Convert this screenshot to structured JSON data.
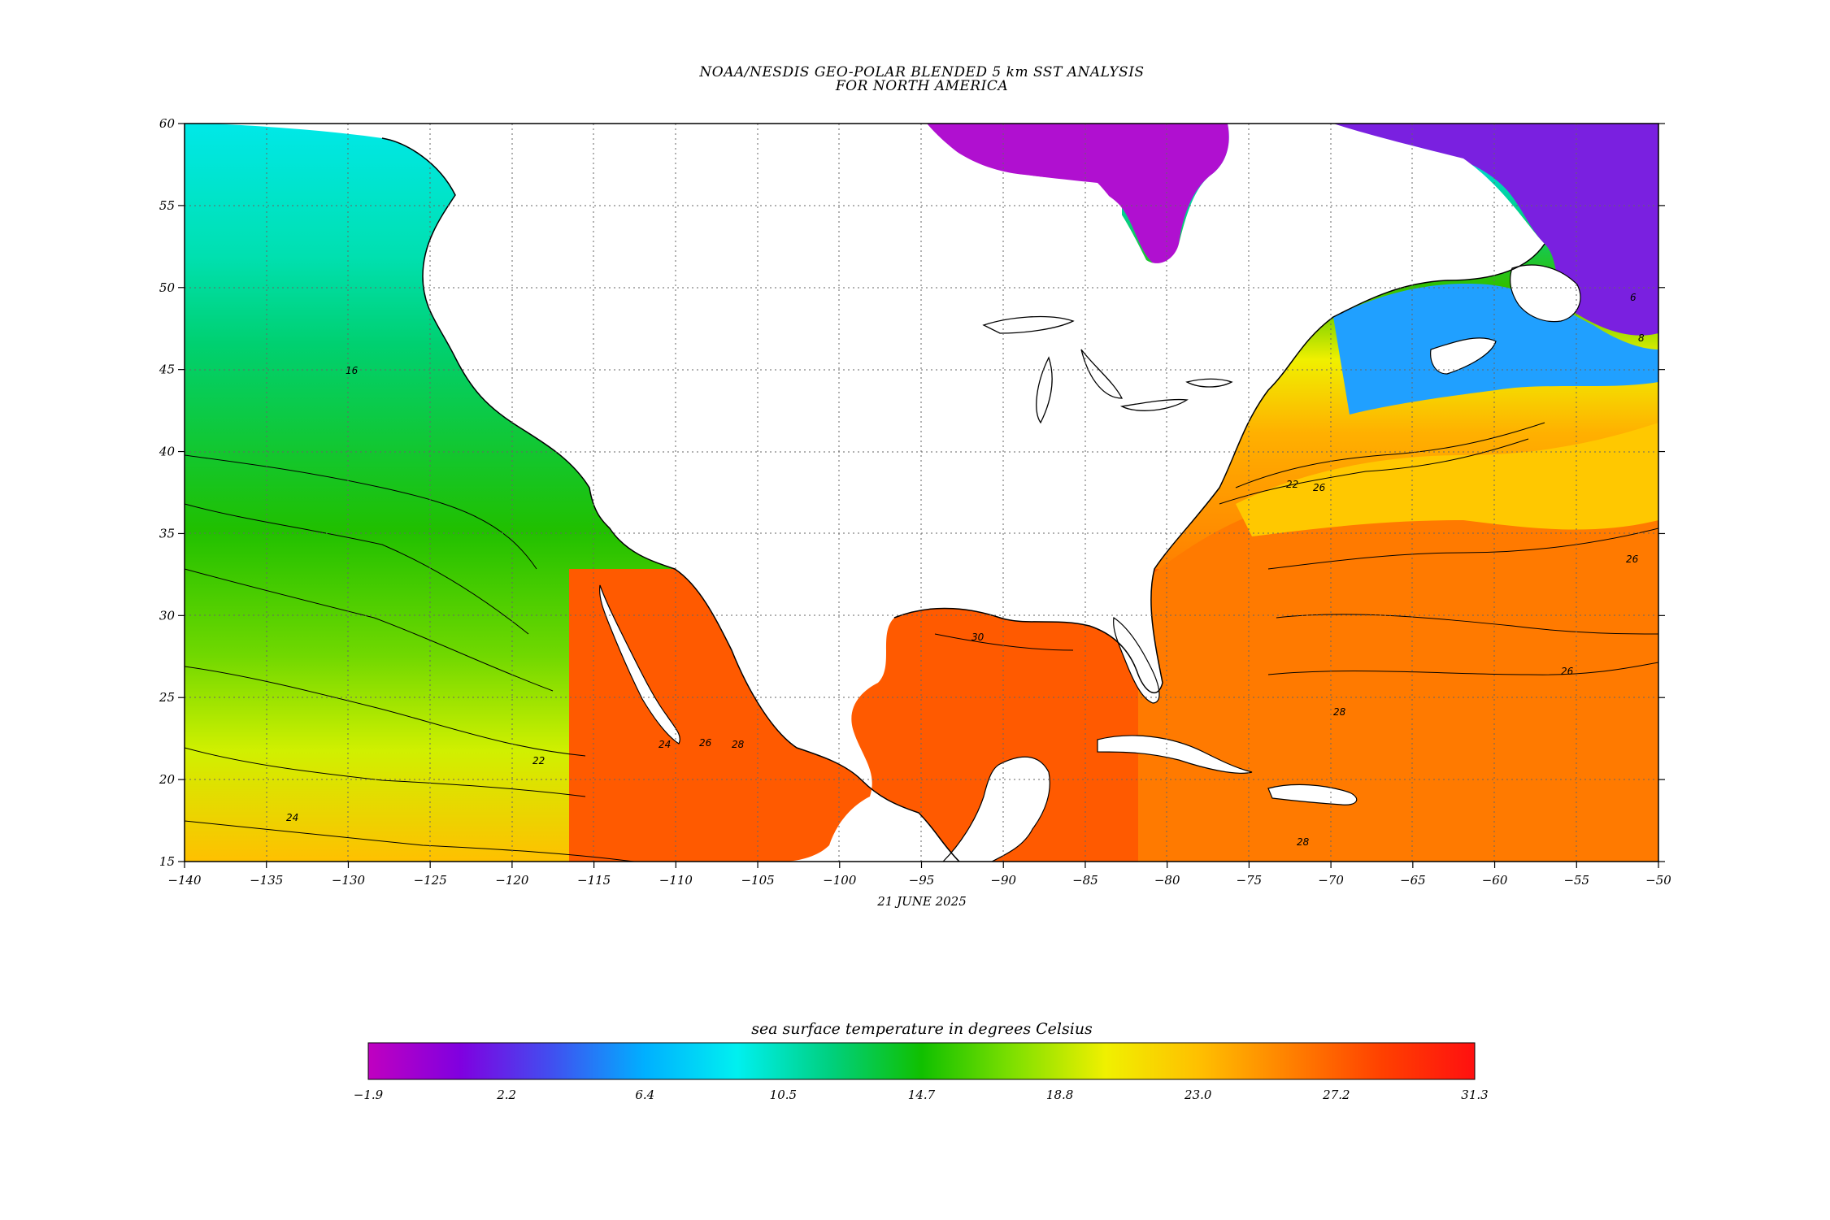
{
  "title": {
    "line1": "NOAA/NESDIS GEO-POLAR BLENDED 5 km SST ANALYSIS",
    "line2": "FOR NORTH AMERICA"
  },
  "date": "21 JUNE 2025",
  "colorbar": {
    "label": "sea surface temperature in degrees Celsius",
    "ticks": [
      "-1.9",
      "2.2",
      "6.4",
      "10.5",
      "14.7",
      "18.8",
      "23.0",
      "27.2",
      "31.3"
    ],
    "stops": [
      "#c000c0",
      "#8000e0",
      "#4050f0",
      "#00b0ff",
      "#00f0f0",
      "#00d080",
      "#10c000",
      "#80e000",
      "#f0f000",
      "#ffc000",
      "#ff8000",
      "#ff4000",
      "#ff1010"
    ]
  },
  "axes": {
    "x_ticks": [
      "-140",
      "-135",
      "-130",
      "-125",
      "-120",
      "-115",
      "-110",
      "-105",
      "-100",
      "-95",
      "-90",
      "-85",
      "-80",
      "-75",
      "-70",
      "-65",
      "-60",
      "-55",
      "-50"
    ],
    "y_ticks": [
      "60",
      "55",
      "50",
      "45",
      "40",
      "35",
      "30",
      "25",
      "20",
      "15"
    ],
    "lon_range": [
      -140,
      -50
    ],
    "lat_range": [
      15,
      60
    ]
  },
  "contour_labels": [
    "22",
    "24",
    "26",
    "28",
    "30",
    "22",
    "26",
    "26",
    "28",
    "16",
    "24",
    "26",
    "28",
    "6",
    "8"
  ],
  "colors": {
    "land": "#ffffff",
    "coast": "#000000"
  }
}
